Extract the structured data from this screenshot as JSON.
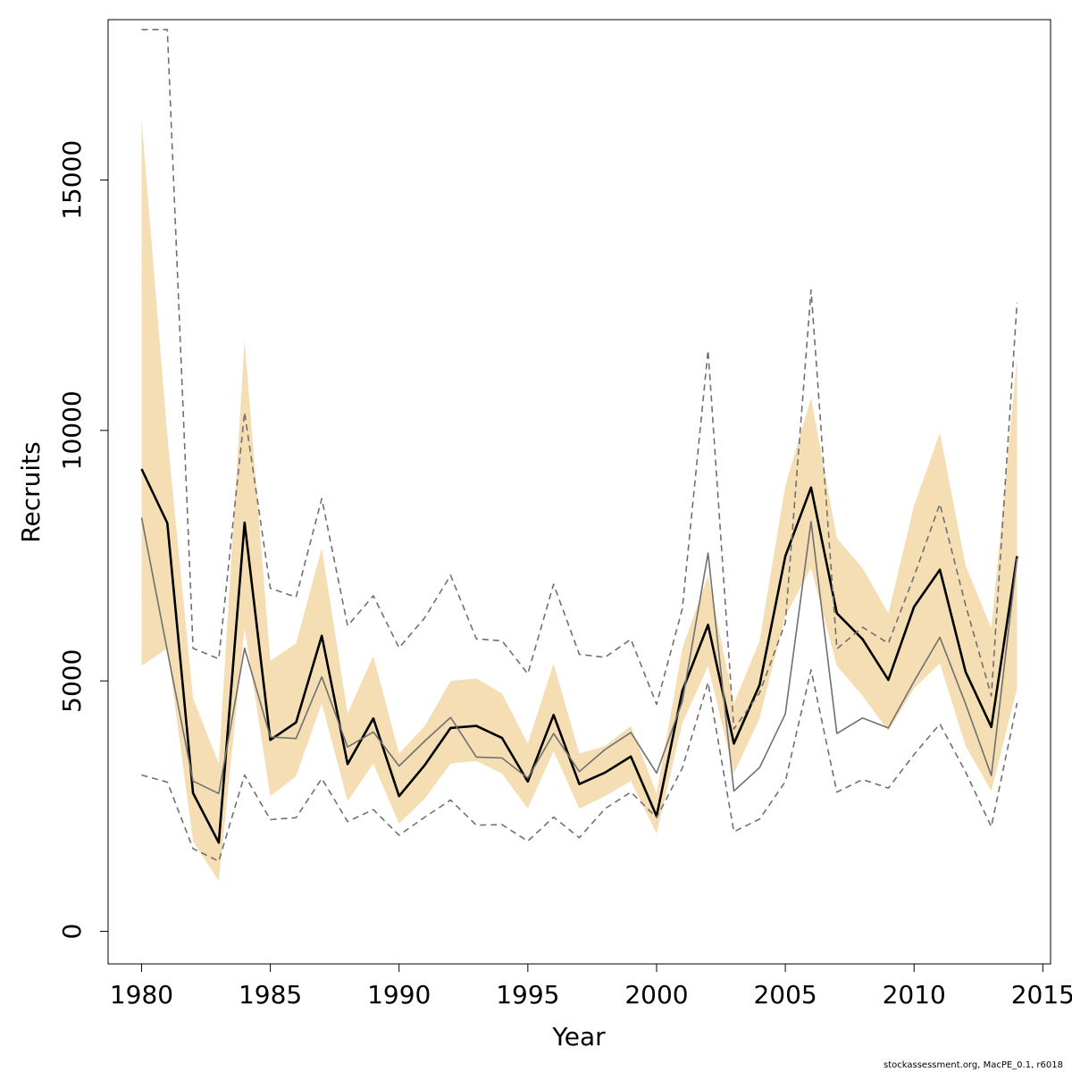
{
  "chart_data": {
    "type": "line",
    "xlabel": "Year",
    "ylabel": "Recruits",
    "xlim": [
      1978.7,
      2015.3
    ],
    "ylim": [
      -650,
      18200
    ],
    "x_ticks": [
      1980,
      1985,
      1990,
      1995,
      2000,
      2005,
      2010,
      2015
    ],
    "y_ticks": [
      0,
      5000,
      10000,
      15000
    ],
    "x_tick_labels": [
      "1980",
      "1985",
      "1990",
      "1995",
      "2000",
      "2005",
      "2010",
      "2015"
    ],
    "y_tick_labels": [
      "0",
      "5000",
      "10000",
      "15000"
    ],
    "grid": false,
    "x": [
      1980,
      1981,
      1982,
      1983,
      1984,
      1985,
      1986,
      1987,
      1988,
      1989,
      1990,
      1991,
      1992,
      1993,
      1994,
      1995,
      1996,
      1997,
      1998,
      1999,
      2000,
      2001,
      2002,
      2003,
      2004,
      2005,
      2006,
      2007,
      2008,
      2009,
      2010,
      2011,
      2012,
      2013,
      2014
    ],
    "series": [
      {
        "style": "band",
        "color": "#f5deb3",
        "lower": [
          5300,
          5650,
          1800,
          1000,
          6050,
          2700,
          3100,
          4550,
          2600,
          3350,
          2150,
          2650,
          3350,
          3400,
          3150,
          2450,
          3600,
          2450,
          2700,
          3000,
          1950,
          4150,
          5300,
          3150,
          4250,
          6300,
          7250,
          5300,
          4700,
          4000,
          4850,
          5350,
          3700,
          2800,
          4850
        ],
        "upper": [
          16200,
          9900,
          4650,
          3350,
          11800,
          5400,
          5750,
          7650,
          4350,
          5500,
          3550,
          4100,
          5000,
          5050,
          4750,
          3750,
          5350,
          3550,
          3700,
          4100,
          2750,
          5650,
          7100,
          4550,
          5800,
          8900,
          10650,
          7850,
          7250,
          6350,
          8500,
          9950,
          7300,
          6050,
          11450
        ]
      },
      {
        "style": "solid-thick",
        "color": "#000000",
        "values": [
          9230,
          8150,
          2760,
          1770,
          8160,
          3820,
          4170,
          5900,
          3340,
          4250,
          2700,
          3320,
          4060,
          4100,
          3860,
          2990,
          4320,
          2940,
          3170,
          3490,
          2300,
          4800,
          6120,
          3750,
          4920,
          7490,
          8860,
          6350,
          5830,
          5020,
          6480,
          7220,
          5180,
          4080,
          7490
        ]
      },
      {
        "style": "solid-thin",
        "color": "#707070",
        "values": [
          8260,
          5600,
          3000,
          2750,
          5650,
          3880,
          3850,
          5080,
          3680,
          3980,
          3300,
          3800,
          4270,
          3480,
          3460,
          3060,
          3950,
          3190,
          3630,
          3970,
          3160,
          4590,
          7550,
          2800,
          3270,
          4340,
          8180,
          3950,
          4260,
          4060,
          4990,
          5870,
          4540,
          3110,
          7450
        ]
      },
      {
        "style": "dashed",
        "color": "#707070",
        "values": [
          3120,
          2980,
          1650,
          1400,
          3120,
          2230,
          2270,
          3050,
          2190,
          2430,
          1920,
          2280,
          2620,
          2120,
          2130,
          1800,
          2280,
          1870,
          2450,
          2780,
          2270,
          3260,
          4970,
          1990,
          2240,
          2990,
          5220,
          2780,
          3030,
          2860,
          3530,
          4140,
          3180,
          2090,
          4560
        ]
      },
      {
        "style": "dashed",
        "color": "#707070",
        "values": [
          18000,
          18000,
          5650,
          5440,
          10360,
          6850,
          6670,
          8640,
          6100,
          6700,
          5660,
          6260,
          7110,
          5840,
          5800,
          5140,
          6930,
          5530,
          5470,
          5830,
          4530,
          6440,
          11600,
          4040,
          4760,
          6160,
          12800,
          5640,
          6070,
          5750,
          7090,
          8530,
          6510,
          4700,
          12550
        ]
      }
    ]
  },
  "footer": {
    "credit": "stockassessment.org, MacPE_0.1, r6018"
  }
}
